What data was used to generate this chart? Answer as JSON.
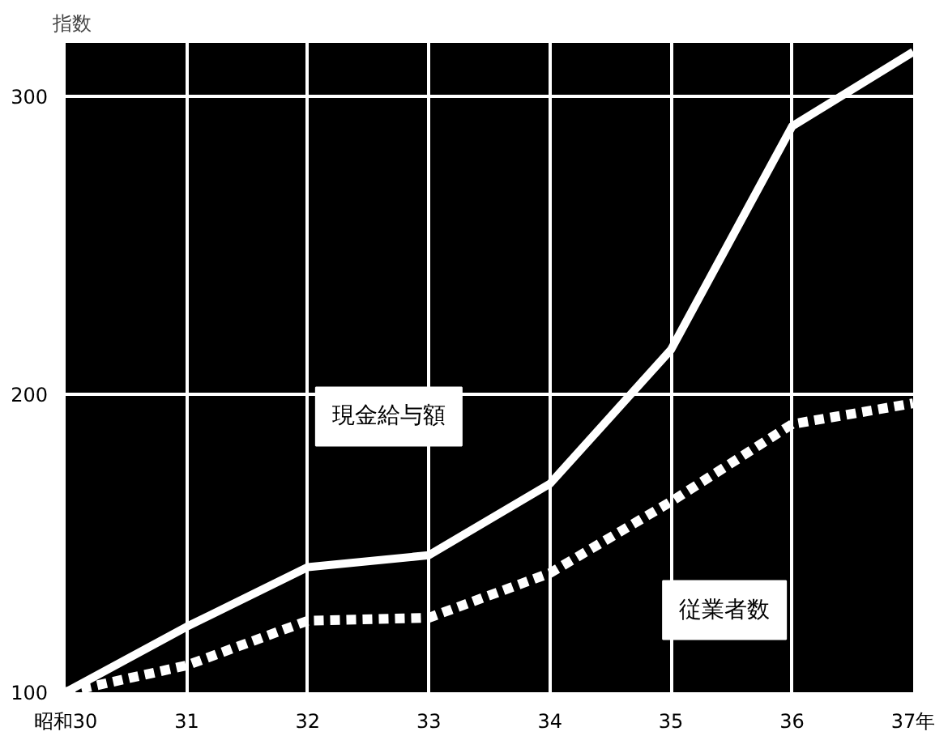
{
  "chart_data": {
    "type": "line",
    "ylabel": "指数",
    "categories": [
      "昭和30",
      "31",
      "32",
      "33",
      "34",
      "35",
      "36",
      "37年"
    ],
    "series": [
      {
        "name": "現金給与額",
        "color": "#ffffff",
        "line_style": "solid",
        "values": [
          100,
          122,
          142,
          146,
          170,
          215,
          290,
          315
        ]
      },
      {
        "name": "従業者数",
        "color": "#ffffff",
        "line_style": "dashed",
        "values": [
          100,
          109,
          124,
          125,
          140,
          164,
          190,
          197
        ]
      }
    ],
    "ylim": [
      100,
      318
    ],
    "yticks": [
      100,
      200,
      300
    ],
    "grid": true,
    "legend": false
  }
}
